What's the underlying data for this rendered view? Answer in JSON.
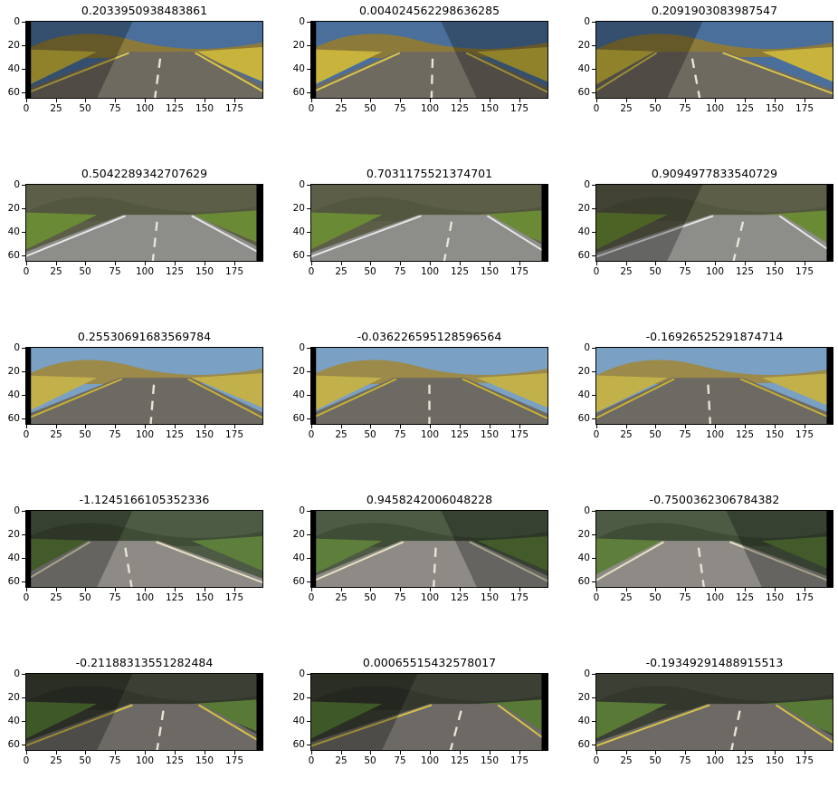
{
  "figure": {
    "x_tick_labels": [
      "0",
      "25",
      "50",
      "75",
      "100",
      "125",
      "150",
      "175"
    ],
    "x_tick_values": [
      0,
      25,
      50,
      75,
      100,
      125,
      150,
      175
    ],
    "y_tick_labels": [
      "0",
      "20",
      "40",
      "60"
    ],
    "y_tick_values": [
      0,
      20,
      40,
      60
    ],
    "image_width": 200,
    "image_height": 66,
    "panels": [
      {
        "title": "0.2033950938483861",
        "scene": "desert",
        "curve": 0.25,
        "shadow": "left",
        "black": "left"
      },
      {
        "title": "0.004024562298636285",
        "scene": "desert",
        "curve": 0.05,
        "shadow": "right",
        "black": "left"
      },
      {
        "title": "0.2091903083987547",
        "scene": "desert",
        "curve": -0.35,
        "shadow": "left",
        "black": "none"
      },
      {
        "title": "0.5042289342707629",
        "scene": "forest",
        "curve": 0.2,
        "shadow": "none",
        "black": "right"
      },
      {
        "title": "0.7031175521374701",
        "scene": "forest",
        "curve": 0.35,
        "shadow": "none",
        "black": "right"
      },
      {
        "title": "0.9094977833540729",
        "scene": "forest",
        "curve": 0.45,
        "shadow": "left",
        "black": "right"
      },
      {
        "title": "0.25530691683569784",
        "scene": "lake",
        "curve": 0.15,
        "shadow": "none",
        "black": "left"
      },
      {
        "title": "-0.036226595128596564",
        "scene": "lake",
        "curve": 0.0,
        "shadow": "none",
        "black": "left"
      },
      {
        "title": "-0.16926525291874714",
        "scene": "lake",
        "curve": -0.1,
        "shadow": "none",
        "black": "right"
      },
      {
        "title": "-1.1245166105352336",
        "scene": "mountain",
        "curve": -0.3,
        "shadow": "left",
        "black": "left"
      },
      {
        "title": "0.9458242006048228",
        "scene": "mountain",
        "curve": 0.1,
        "shadow": "right",
        "black": "left"
      },
      {
        "title": "-0.7500362306784382",
        "scene": "mountain",
        "curve": -0.25,
        "shadow": "right",
        "black": "right"
      },
      {
        "title": "-0.21188313551282484",
        "scene": "dark",
        "curve": 0.3,
        "shadow": "left",
        "black": "right"
      },
      {
        "title": "0.00065515432578017",
        "scene": "dark",
        "curve": 0.5,
        "shadow": "left",
        "black": "right"
      },
      {
        "title": "-0.19349291488915513",
        "scene": "dark",
        "curve": 0.4,
        "shadow": "none",
        "black": "none"
      }
    ],
    "scene_colors": {
      "desert": {
        "sky": "#4a6f9a",
        "hills": "#8c7a3a",
        "veg": "#c8b43c",
        "road": "#6f6a60",
        "edge": "#d9c84a"
      },
      "forest": {
        "sky": "#5c5e48",
        "hills": "#54573f",
        "veg": "#6b8a35",
        "road": "#8d8d8a",
        "edge": "#e8e8e8"
      },
      "lake": {
        "sky": "#7aa0c4",
        "hills": "#9c8a4a",
        "veg": "#c2b04a",
        "road": "#6c6a62",
        "edge": "#c9b236"
      },
      "mountain": {
        "sky": "#4d5a44",
        "hills": "#3f4c36",
        "veg": "#5e7f3c",
        "road": "#8e8b86",
        "edge": "#e9e3c4"
      },
      "dark": {
        "sky": "#3c4034",
        "hills": "#33372c",
        "veg": "#587a36",
        "road": "#6d6a66",
        "edge": "#d9c44a"
      }
    }
  }
}
